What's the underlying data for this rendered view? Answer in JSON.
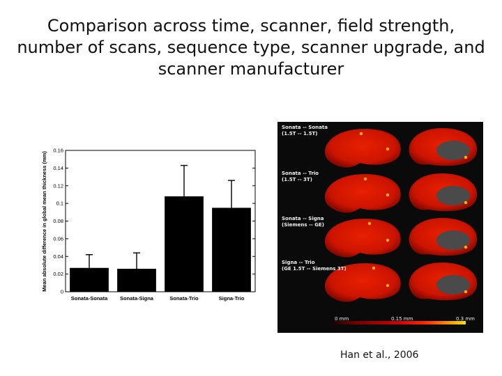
{
  "slide": {
    "title_lines": [
      "Comparison across time, scanner, field strength,",
      "number of scans, sequence type, scanner upgrade, and",
      "scanner manufacturer"
    ],
    "citation_author": "Han et al.,",
    "citation_year": "2006"
  },
  "chart_data": {
    "type": "bar",
    "categories": [
      "Sonata-Sonata",
      "Sonata-Signa",
      "Sonata-Trio",
      "Signa-Trio"
    ],
    "values": [
      0.027,
      0.026,
      0.108,
      0.095
    ],
    "error_upper": [
      0.042,
      0.044,
      0.143,
      0.126
    ],
    "ylabel": "Mean absolute difference in global mean thickness (mm)",
    "ylim": [
      0,
      0.16
    ],
    "yticks": [
      0,
      0.02,
      0.04,
      0.06,
      0.08,
      0.1,
      0.12,
      0.14,
      0.16
    ],
    "ytick_labels": [
      "0",
      "0.02",
      "0.04",
      "0.06",
      "0.08",
      "0.1",
      "0.12",
      "0.14",
      "0.16"
    ],
    "bar_color": "#000000",
    "grid": false
  },
  "brain_figure": {
    "labels": [
      "Sonata -- Sonata\n(1.5T -- 1.5T)",
      "Sonata -- Trio\n(1.5T -- 3T)",
      "Sonata -- Signa\n(Siemens -- GE)",
      "Signa -- Trio\n(GE 1.5T -- Siemens 3T)"
    ],
    "colorbar_ticks": [
      "0 mm",
      "0.15 mm",
      "0.3 mm"
    ],
    "colors": {
      "background": "#0a0a0a",
      "cortex": "#cc1400",
      "medial_wall": "#4a4a4a",
      "hot": "#ffd000"
    }
  }
}
